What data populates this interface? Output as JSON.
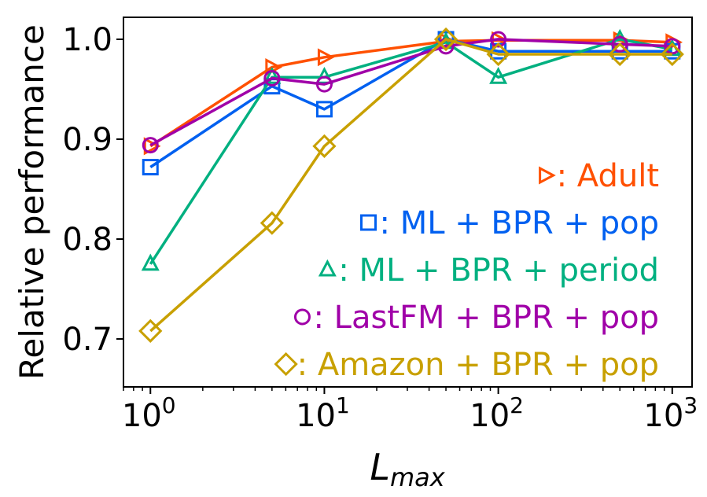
{
  "chart_data": {
    "type": "line",
    "xscale": "log",
    "xlim": [
      0.7,
      1300
    ],
    "ylim": [
      0.652,
      1.022
    ],
    "xlabel": "L",
    "xlabel_sub": "max",
    "ylabel": "Relative performance",
    "x_ticks": [
      {
        "value": 1,
        "base": "10",
        "exp": "0"
      },
      {
        "value": 10,
        "base": "10",
        "exp": "1"
      },
      {
        "value": 100,
        "base": "10",
        "exp": "2"
      },
      {
        "value": 1000,
        "base": "10",
        "exp": "3"
      }
    ],
    "y_ticks": [
      {
        "value": 0.7,
        "label": "0.7"
      },
      {
        "value": 0.8,
        "label": "0.8"
      },
      {
        "value": 0.9,
        "label": "0.9"
      },
      {
        "value": 1.0,
        "label": "1.0"
      }
    ],
    "grid": false,
    "legend_position": "bottom-right",
    "series": [
      {
        "name": ": Adult",
        "marker": "triangle-right",
        "color": "#ff5000",
        "x": [
          1,
          5,
          10,
          50,
          100,
          500,
          1000
        ],
        "y": [
          0.893,
          0.972,
          0.982,
          0.998,
          0.999,
          0.999,
          0.997
        ]
      },
      {
        "name": ": ML + BPR + pop",
        "marker": "square",
        "color": "#0060f0",
        "x": [
          1,
          5,
          10,
          50,
          100,
          500,
          1000
        ],
        "y": [
          0.872,
          0.953,
          0.93,
          1.0,
          0.988,
          0.988,
          0.988
        ]
      },
      {
        "name": ": ML + BPR + period",
        "marker": "triangle-up",
        "color": "#00b080",
        "x": [
          1,
          5,
          10,
          50,
          100,
          500,
          1000
        ],
        "y": [
          0.775,
          0.962,
          0.962,
          0.997,
          0.962,
          1.0,
          0.99
        ]
      },
      {
        "name": ": LastFM + BPR + pop",
        "marker": "circle",
        "color": "#a000a8",
        "x": [
          1,
          5,
          10,
          50,
          100,
          500,
          1000
        ],
        "y": [
          0.894,
          0.961,
          0.955,
          0.993,
          1.0,
          0.995,
          0.993
        ]
      },
      {
        "name": ": Amazon + BPR + pop",
        "marker": "diamond",
        "color": "#c8a000",
        "x": [
          1,
          5,
          10,
          50,
          100,
          500,
          1000
        ],
        "y": [
          0.708,
          0.816,
          0.893,
          1.0,
          0.985,
          0.985,
          0.985
        ]
      }
    ]
  }
}
